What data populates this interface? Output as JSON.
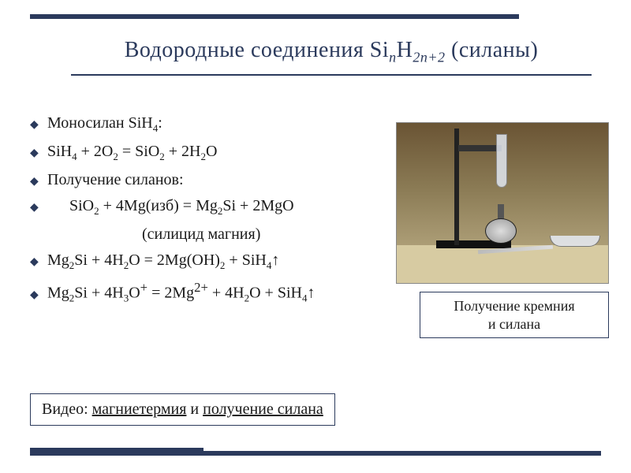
{
  "colors": {
    "accent": "#2b3a5c",
    "text": "#1a1a1a",
    "background": "#ffffff"
  },
  "typography": {
    "title_fontsize": 28,
    "body_fontsize": 20,
    "caption_fontsize": 18,
    "font_family": "Times New Roman"
  },
  "title": {
    "prefix": "Водородные соединения Si",
    "sub1": "n",
    "mid": "H",
    "sub2": "2n+2",
    "suffix": " (силаны)"
  },
  "lines": {
    "l1_a": "Моносилан SiH",
    "l1_b": ":",
    "l2_a": "SiH",
    "l2_b": " + 2O",
    "l2_c": " = SiO",
    "l2_d": " + 2H",
    "l2_e": "O",
    "l3": "Получение силанов:",
    "l4_a": "SiO",
    "l4_b": " + 4Mg(изб) = Mg",
    "l4_c": "Si + 2MgO",
    "l5": "(силицид магния)",
    "l6_a": "Mg",
    "l6_b": "Si + 4H",
    "l6_c": "O = 2Mg(OH)",
    "l6_d": " + SiH",
    "l6_e": "↑",
    "l7_a": "Mg",
    "l7_b": "Si + 4H",
    "l7_c": "O",
    "l7_d": " = 2Mg",
    "l7_e": " + 4H",
    "l7_f": "O + SiH",
    "l7_g": "↑",
    "sub4": "4",
    "sub2": "2",
    "sub3": "3",
    "supplus": "+",
    "sup2plus": "2+"
  },
  "caption": {
    "line1": "Получение кремния",
    "line2": "и силана"
  },
  "bottom": {
    "pre": "Видео: ",
    "link1": "магниетермия",
    "mid": " и ",
    "link2": "получение силана"
  }
}
